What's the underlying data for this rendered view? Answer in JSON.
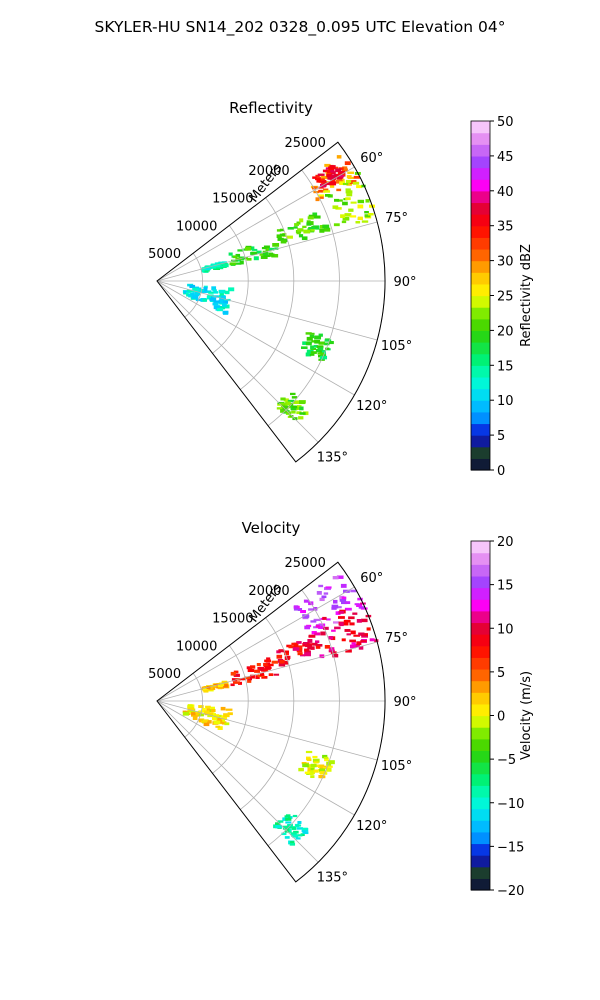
{
  "figure_title": "SKYLER-HU  SN14_202  0328_0.095 UTC Elevation 04°",
  "chart_data": [
    {
      "type": "heatmap",
      "projection": "polar-sector",
      "title": "Reflectivity",
      "radial_label": "Meters",
      "radial_ticks": [
        5000,
        10000,
        15000,
        20000,
        25000
      ],
      "radial_tick_labels": [
        "5000",
        "10000",
        "15000",
        "20000",
        "25000"
      ],
      "radial_max": 25000,
      "theta_range_deg": [
        52.5,
        142.5
      ],
      "theta_ticks": [
        60,
        75,
        90,
        105,
        120,
        135
      ],
      "theta_tick_labels": [
        "60°",
        "75°",
        "90°",
        "105°",
        "120°",
        "135°"
      ],
      "grid": true,
      "colorbar": {
        "label": "Reflectivity dBZ",
        "min": 0,
        "max": 50,
        "ticks": [
          0,
          5,
          10,
          15,
          20,
          25,
          30,
          35,
          40,
          45,
          50
        ],
        "tick_labels": [
          "0",
          "5",
          "10",
          "15",
          "20",
          "25",
          "30",
          "35",
          "40",
          "45",
          "50"
        ]
      },
      "echo_regions": [
        {
          "az": [
            55,
            63
          ],
          "range": [
            19000,
            24500
          ],
          "value": 30
        },
        {
          "az": [
            56,
            60
          ],
          "range": [
            20500,
            23500
          ],
          "value": 36
        },
        {
          "az": [
            61,
            74
          ],
          "range": [
            20000,
            24800
          ],
          "value": 23
        },
        {
          "az": [
            66,
            73
          ],
          "range": [
            14000,
            19500
          ],
          "value": 21
        },
        {
          "az": [
            68,
            77
          ],
          "range": [
            8000,
            13500
          ],
          "value": 19
        },
        {
          "az": [
            72,
            76
          ],
          "range": [
            5000,
            7500
          ],
          "value": 14
        },
        {
          "az": [
            95,
            115
          ],
          "range": [
            3000,
            8000
          ],
          "value": 12
        },
        {
          "az": [
            108,
            116
          ],
          "range": [
            17000,
            20000
          ],
          "value": 18
        },
        {
          "az": [
            130,
            137
          ],
          "range": [
            18500,
            21500
          ],
          "value": 21
        }
      ]
    },
    {
      "type": "heatmap",
      "projection": "polar-sector",
      "title": "Velocity",
      "radial_label": "Meters",
      "radial_ticks": [
        5000,
        10000,
        15000,
        20000,
        25000
      ],
      "radial_tick_labels": [
        "5000",
        "10000",
        "15000",
        "20000",
        "25000"
      ],
      "radial_max": 25000,
      "theta_range_deg": [
        52.5,
        142.5
      ],
      "theta_ticks": [
        60,
        75,
        90,
        105,
        120,
        135
      ],
      "theta_tick_labels": [
        "60°",
        "75°",
        "90°",
        "105°",
        "120°",
        "135°"
      ],
      "grid": true,
      "colorbar": {
        "label": "Velocity (m/s)",
        "min": -20,
        "max": 20,
        "ticks": [
          -20,
          -15,
          -10,
          -5,
          0,
          5,
          10,
          15,
          20
        ],
        "tick_labels": [
          "−20",
          "−15",
          "−10",
          "−5",
          "0",
          "5",
          "10",
          "15",
          "20"
        ]
      },
      "echo_regions": [
        {
          "az": [
            54,
            66
          ],
          "range": [
            18000,
            24800
          ],
          "value": 15
        },
        {
          "az": [
            63,
            75
          ],
          "range": [
            18500,
            24800
          ],
          "value": 10
        },
        {
          "az": [
            66,
            73
          ],
          "range": [
            14000,
            19500
          ],
          "value": 9
        },
        {
          "az": [
            68,
            77
          ],
          "range": [
            8000,
            13500
          ],
          "value": 8
        },
        {
          "az": [
            72,
            76
          ],
          "range": [
            5000,
            7500
          ],
          "value": 2
        },
        {
          "az": [
            95,
            115
          ],
          "range": [
            3000,
            8000
          ],
          "value": 1
        },
        {
          "az": [
            108,
            116
          ],
          "range": [
            17000,
            20000
          ],
          "value": 0
        },
        {
          "az": [
            130,
            137
          ],
          "range": [
            18500,
            21500
          ],
          "value": -9
        }
      ]
    }
  ]
}
